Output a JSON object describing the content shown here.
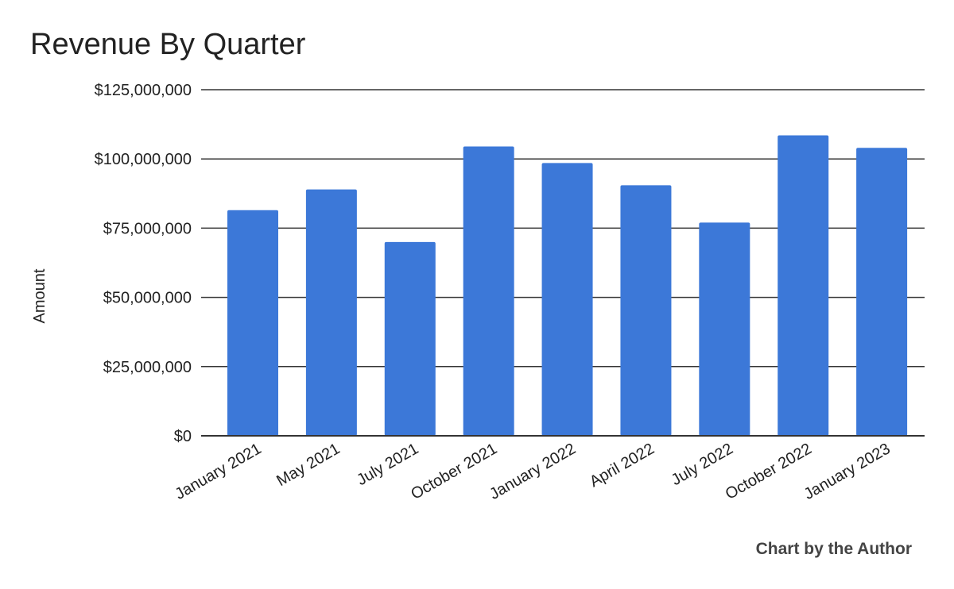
{
  "chart_data": {
    "type": "bar",
    "title": "Revenue By Quarter",
    "ylabel": "Amount",
    "xlabel": "",
    "categories": [
      "January 2021",
      "May 2021",
      "July 2021",
      "October 2021",
      "January 2022",
      "April 2022",
      "July 2022",
      "October 2022",
      "January 2023"
    ],
    "series": [
      {
        "values": [
          81500000,
          89000000,
          70000000,
          104500000,
          98500000,
          90500000,
          77000000,
          108500000,
          104000000
        ]
      }
    ],
    "ylim": [
      0,
      125000000
    ],
    "yticks": [
      0,
      25000000,
      50000000,
      75000000,
      100000000,
      125000000
    ],
    "ytick_labels": [
      "$0",
      "$25,000,000",
      "$50,000,000",
      "$75,000,000",
      "$100,000,000",
      "$125,000,000"
    ],
    "grid": true,
    "bar_color": "#3c78d8",
    "credit": "Chart by the Author"
  }
}
